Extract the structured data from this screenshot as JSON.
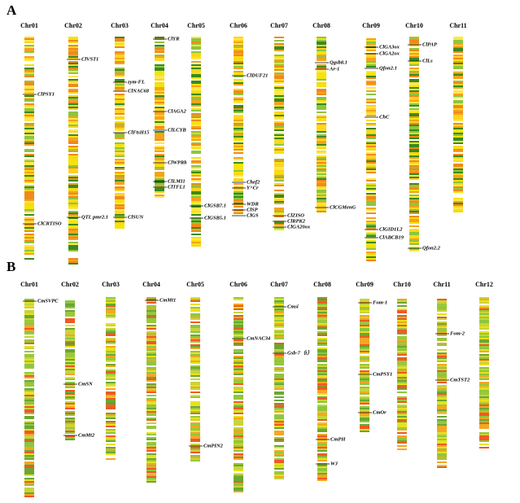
{
  "panels": [
    {
      "label": "A",
      "chromosomes": [
        {
          "name": "Chr01",
          "genes": [
            "ClPSY1",
            "ClCRTISO"
          ]
        },
        {
          "name": "Chr02",
          "genes": [
            "ClVST1",
            "QTL pmr2.1"
          ]
        },
        {
          "name": "Chr03",
          "genes": [
            "zym-FL",
            "ClNAC68",
            "ClFtsH15",
            "ClSUN"
          ]
        },
        {
          "name": "Chr04",
          "genes": [
            "ClYR",
            "ClAGA2",
            "ClLCYB",
            "ClWPRb",
            "ClLMI1",
            "ClTFL1"
          ]
        },
        {
          "name": "Chr05",
          "genes": [
            "ClGSB7.1",
            "ClGSB5.1"
          ]
        },
        {
          "name": "Chr06",
          "genes": [
            "ClDUF21",
            "Chef2",
            "Y^Cr",
            "WDR",
            "ClSP",
            "ClGS"
          ]
        },
        {
          "name": "Chr07",
          "genes": [
            "ClZISO",
            "ClRPK2",
            "ClGA20ox"
          ]
        },
        {
          "name": "Chr08",
          "genes": [
            "Qgsb8.1",
            "Ar-1",
            "ClCGMenG"
          ]
        },
        {
          "name": "Chr09",
          "genes": [
            "ClGA3ox",
            "ClGA2ox",
            "Qfon2.1",
            "ChC",
            "ClGID1L2",
            "ClABCB19"
          ]
        },
        {
          "name": "Chr10",
          "genes": [
            "ClPAP",
            "ClLs",
            "Qfon2.2"
          ]
        },
        {
          "name": "Chr11",
          "genes": []
        }
      ]
    },
    {
      "label": "B",
      "chromosomes": [
        {
          "name": "Chr01",
          "genes": [
            "CmSVPC"
          ]
        },
        {
          "name": "Chr02",
          "genes": [
            "CmSN",
            "CmMt2"
          ]
        },
        {
          "name": "Chr03",
          "genes": []
        },
        {
          "name": "Chr04",
          "genes": [
            "CmMt1"
          ]
        },
        {
          "name": "Chr05",
          "genes": [
            "CmPIN2"
          ]
        },
        {
          "name": "Chr06",
          "genes": [
            "CmNAC34"
          ]
        },
        {
          "name": "Chr07",
          "genes": [
            "Cmsi",
            "Gsb-7（t）"
          ]
        },
        {
          "name": "Chr08",
          "genes": [
            "CmPH",
            "WJ"
          ]
        },
        {
          "name": "Chr09",
          "genes": [
            "Fom-1",
            "CmPSY1",
            "CmOr"
          ]
        },
        {
          "name": "Chr10",
          "genes": []
        },
        {
          "name": "Chr11",
          "genes": [
            "Fom-2",
            "CmTST2"
          ]
        },
        {
          "name": "Chr12",
          "genes": []
        }
      ]
    }
  ]
}
